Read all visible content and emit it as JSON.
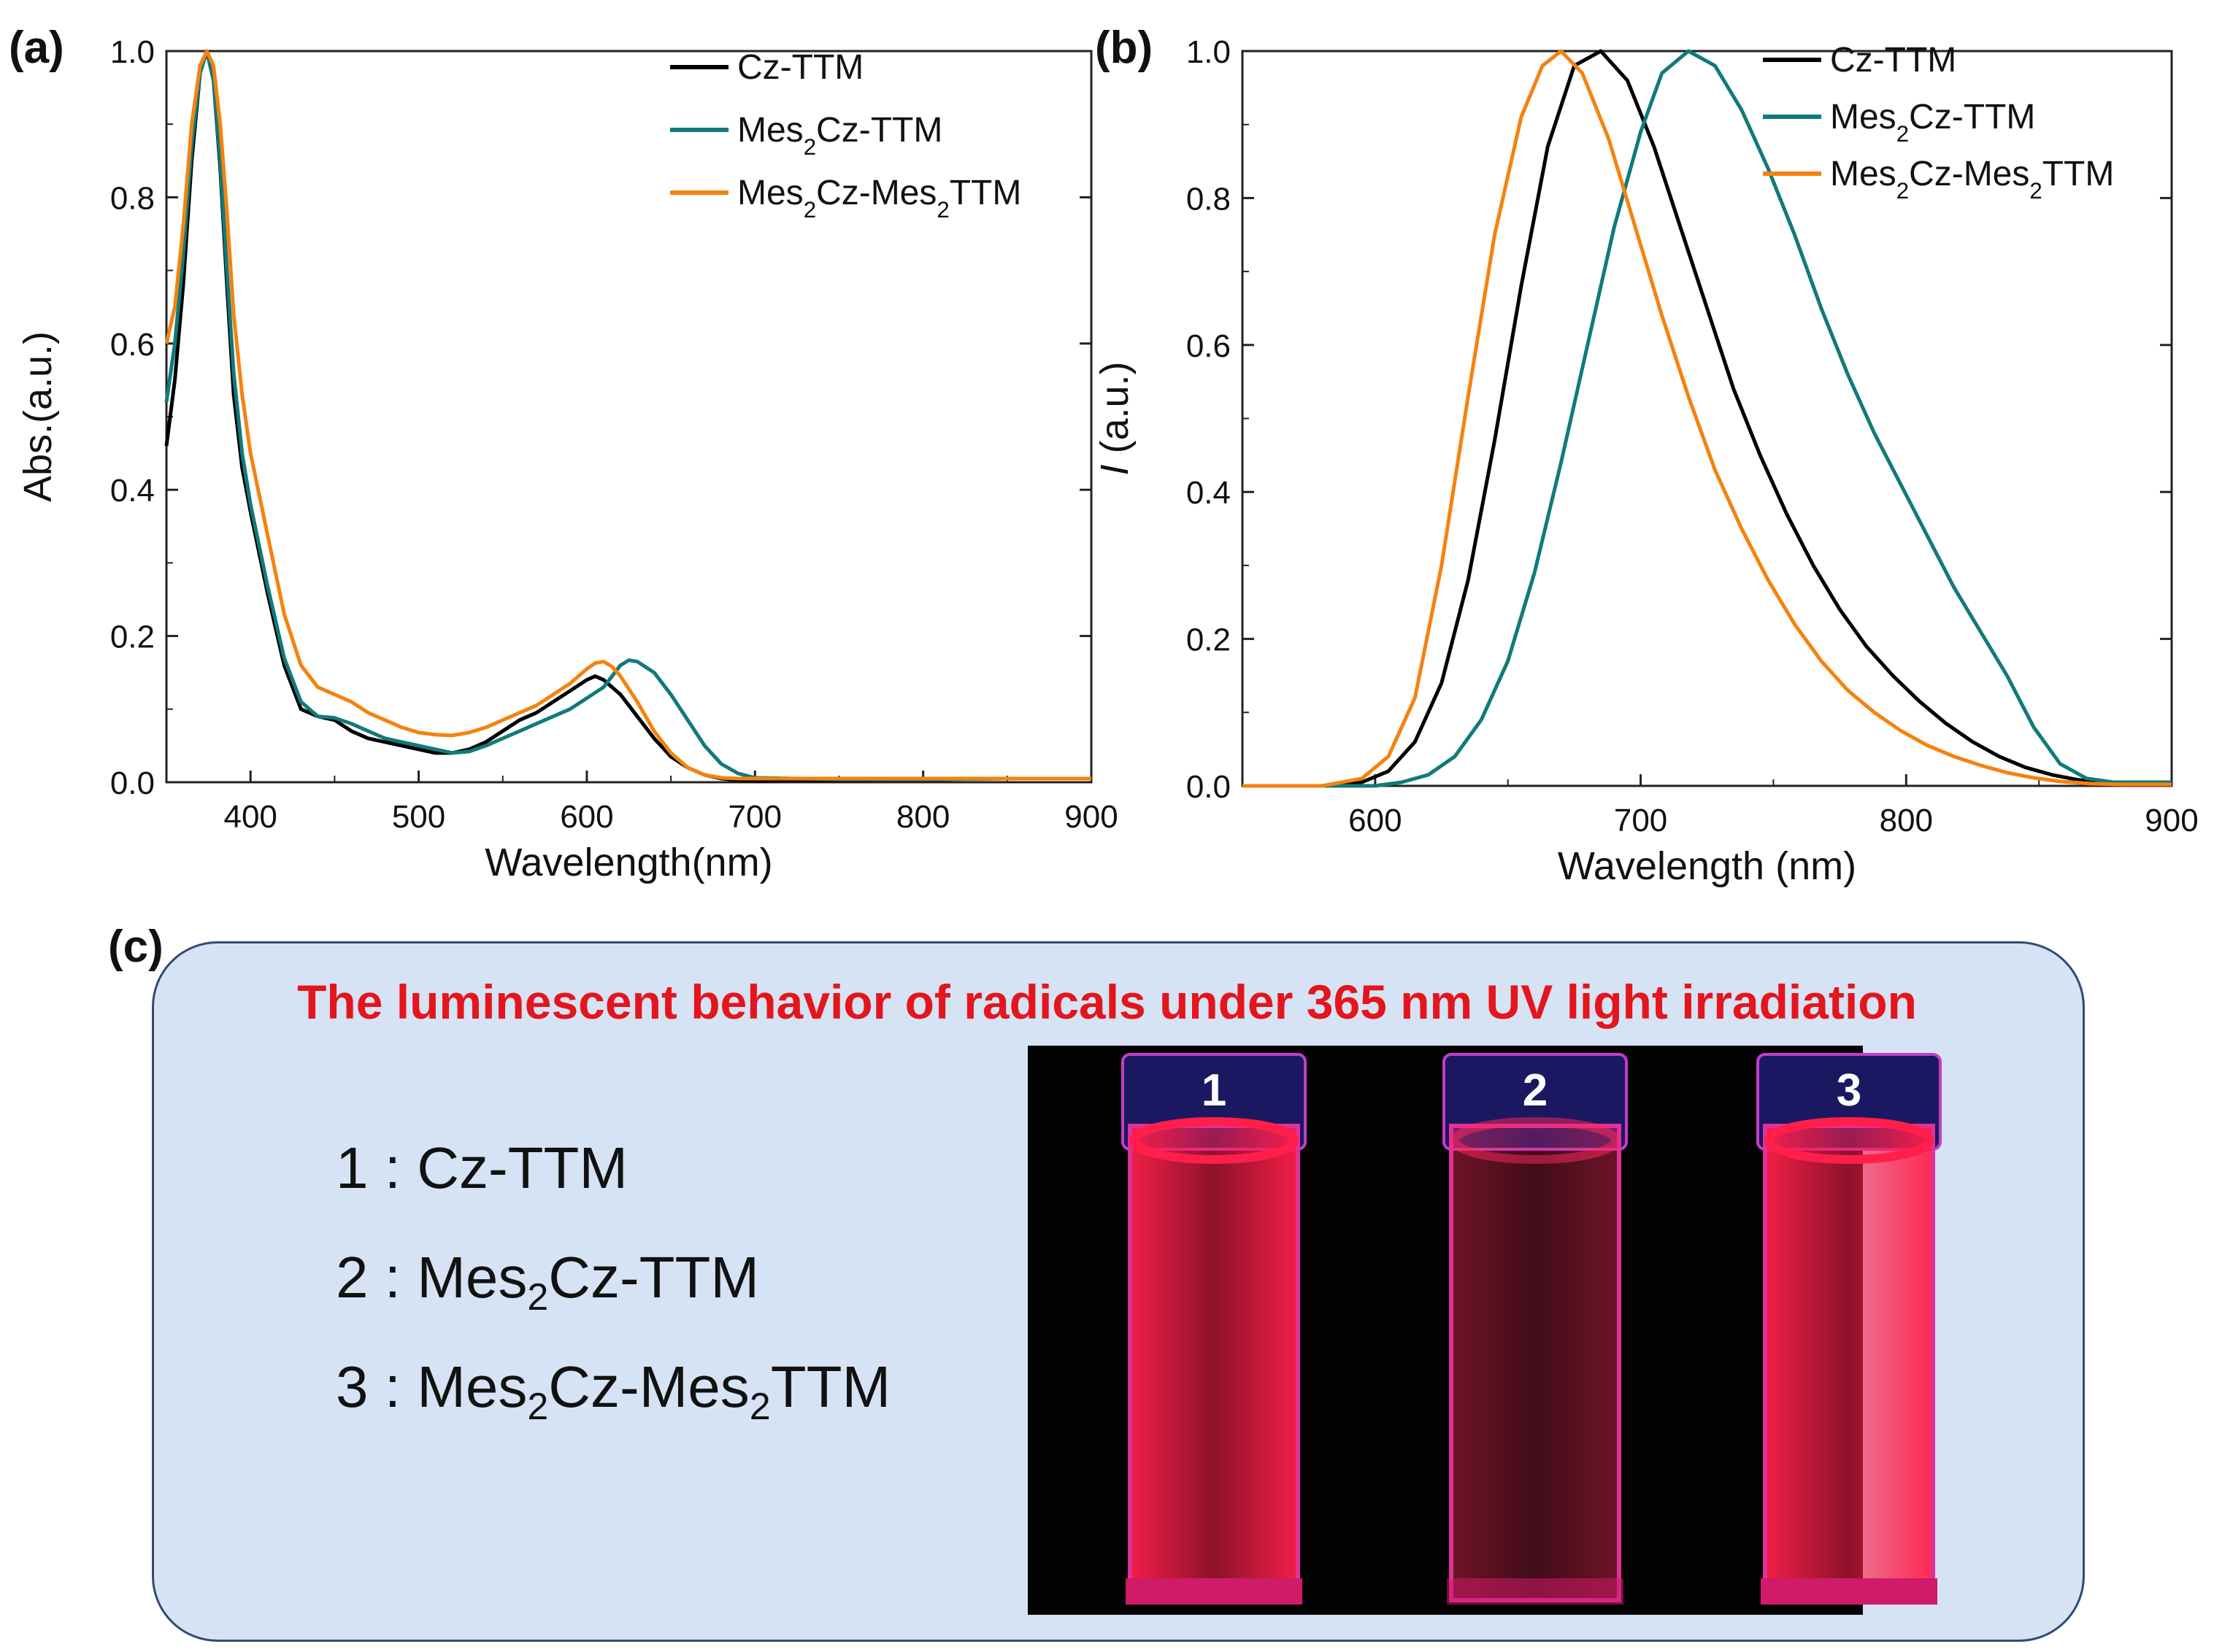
{
  "panel_labels": {
    "a": "(a)",
    "b": "(b)",
    "c": "(c)"
  },
  "chart_data": [
    {
      "type": "line",
      "title": "",
      "xlabel": "Wavelength(nm)",
      "ylabel": "Abs.(a.u.)",
      "xlim": [
        350,
        900
      ],
      "ylim": [
        0,
        1.0
      ],
      "xticks": [
        400,
        500,
        600,
        700,
        800,
        900
      ],
      "yticks": [
        0.0,
        0.2,
        0.4,
        0.6,
        0.8,
        1.0
      ],
      "xtick_labels": [
        "400",
        "500",
        "600",
        "700",
        "800",
        "900"
      ],
      "ytick_labels": [
        "0.0",
        "0.2",
        "0.4",
        "0.6",
        "0.8",
        "1.0"
      ],
      "legend_position": "top-right",
      "series": [
        {
          "name": "Cz-TTM",
          "label_main": "Cz-TTM",
          "color": "#000000",
          "x": [
            350,
            355,
            360,
            365,
            370,
            374,
            378,
            382,
            386,
            390,
            395,
            400,
            410,
            420,
            430,
            440,
            450,
            460,
            470,
            480,
            490,
            500,
            510,
            520,
            530,
            540,
            550,
            560,
            570,
            580,
            590,
            600,
            605,
            610,
            620,
            630,
            640,
            650,
            660,
            670,
            680,
            690,
            700,
            750,
            800,
            850,
            900
          ],
          "y": [
            0.46,
            0.55,
            0.68,
            0.85,
            0.97,
            1.0,
            0.96,
            0.84,
            0.68,
            0.53,
            0.43,
            0.37,
            0.26,
            0.16,
            0.1,
            0.09,
            0.085,
            0.07,
            0.06,
            0.055,
            0.05,
            0.045,
            0.04,
            0.04,
            0.045,
            0.055,
            0.07,
            0.085,
            0.095,
            0.11,
            0.125,
            0.14,
            0.145,
            0.14,
            0.12,
            0.09,
            0.06,
            0.035,
            0.02,
            0.01,
            0.005,
            0.003,
            0.002,
            0.003,
            0.004,
            0.005,
            0.005
          ]
        },
        {
          "name": "Mes2Cz-TTM",
          "label_main": "Mes",
          "label_sub": "2",
          "label_tail": "Cz-TTM",
          "color": "#117a7a",
          "x": [
            350,
            355,
            360,
            365,
            370,
            374,
            378,
            382,
            386,
            390,
            395,
            400,
            410,
            420,
            430,
            440,
            450,
            460,
            470,
            480,
            490,
            500,
            510,
            520,
            530,
            540,
            550,
            560,
            570,
            580,
            590,
            600,
            610,
            615,
            620,
            625,
            630,
            640,
            650,
            660,
            670,
            680,
            690,
            700,
            750,
            800,
            850,
            900
          ],
          "y": [
            0.52,
            0.6,
            0.72,
            0.87,
            0.97,
            1.0,
            0.96,
            0.85,
            0.7,
            0.56,
            0.45,
            0.38,
            0.27,
            0.17,
            0.11,
            0.09,
            0.088,
            0.08,
            0.07,
            0.06,
            0.055,
            0.05,
            0.045,
            0.04,
            0.042,
            0.05,
            0.06,
            0.07,
            0.08,
            0.09,
            0.1,
            0.115,
            0.13,
            0.145,
            0.16,
            0.167,
            0.165,
            0.15,
            0.12,
            0.085,
            0.05,
            0.025,
            0.012,
            0.006,
            0.004,
            0.004,
            0.005,
            0.005
          ]
        },
        {
          "name": "Mes2Cz-Mes2TTM",
          "label_main": "Mes",
          "label_sub": "2",
          "label_mid": "Cz-Mes",
          "label_sub2": "2",
          "label_tail": "TTM",
          "color": "#f5820f",
          "x": [
            350,
            355,
            360,
            365,
            370,
            374,
            378,
            382,
            386,
            390,
            395,
            400,
            410,
            420,
            430,
            440,
            450,
            460,
            470,
            480,
            490,
            500,
            510,
            520,
            530,
            540,
            550,
            560,
            570,
            580,
            590,
            600,
            605,
            610,
            615,
            620,
            630,
            640,
            650,
            660,
            670,
            680,
            690,
            700,
            750,
            800,
            850,
            900
          ],
          "y": [
            0.6,
            0.65,
            0.76,
            0.9,
            0.98,
            1.0,
            0.98,
            0.9,
            0.78,
            0.64,
            0.53,
            0.45,
            0.34,
            0.23,
            0.16,
            0.13,
            0.12,
            0.11,
            0.095,
            0.085,
            0.075,
            0.068,
            0.065,
            0.064,
            0.068,
            0.075,
            0.085,
            0.095,
            0.105,
            0.12,
            0.135,
            0.155,
            0.163,
            0.165,
            0.158,
            0.145,
            0.11,
            0.07,
            0.04,
            0.02,
            0.01,
            0.006,
            0.005,
            0.005,
            0.005,
            0.005,
            0.005,
            0.005
          ]
        }
      ]
    },
    {
      "type": "line",
      "title": "",
      "xlabel": "Wavelength (nm)",
      "ylabel": "I (a.u.)",
      "ylabel_italic": "I",
      "ylabel_rest": " (a.u.)",
      "xlim": [
        550,
        900
      ],
      "ylim": [
        0,
        1.0
      ],
      "xticks": [
        600,
        700,
        800,
        900
      ],
      "yticks": [
        0.0,
        0.2,
        0.4,
        0.6,
        0.8,
        1.0
      ],
      "xtick_labels": [
        "600",
        "700",
        "800",
        "900"
      ],
      "ytick_labels": [
        "0.0",
        "0.2",
        "0.4",
        "0.6",
        "0.8",
        "1.0"
      ],
      "legend_position": "top-right",
      "series": [
        {
          "name": "Cz-TTM",
          "label_main": "Cz-TTM",
          "color": "#000000",
          "x": [
            550,
            580,
            595,
            605,
            615,
            625,
            635,
            645,
            655,
            665,
            675,
            685,
            695,
            705,
            715,
            725,
            735,
            745,
            755,
            765,
            775,
            785,
            795,
            805,
            815,
            825,
            835,
            845,
            855,
            865,
            875,
            885,
            900
          ],
          "y": [
            0.0,
            0.0,
            0.005,
            0.02,
            0.06,
            0.14,
            0.28,
            0.47,
            0.68,
            0.87,
            0.98,
            1.0,
            0.96,
            0.87,
            0.76,
            0.65,
            0.54,
            0.45,
            0.37,
            0.3,
            0.24,
            0.19,
            0.15,
            0.115,
            0.085,
            0.06,
            0.04,
            0.025,
            0.015,
            0.008,
            0.005,
            0.005,
            0.005
          ]
        },
        {
          "name": "Mes2Cz-TTM",
          "label_main": "Mes",
          "label_sub": "2",
          "label_tail": "Cz-TTM",
          "color": "#117a7a",
          "x": [
            550,
            600,
            610,
            620,
            630,
            640,
            650,
            660,
            670,
            680,
            690,
            700,
            708,
            718,
            728,
            738,
            748,
            758,
            768,
            778,
            788,
            798,
            808,
            818,
            828,
            838,
            848,
            858,
            868,
            878,
            890,
            900
          ],
          "y": [
            0.0,
            0.0,
            0.005,
            0.015,
            0.04,
            0.09,
            0.17,
            0.29,
            0.44,
            0.6,
            0.76,
            0.89,
            0.97,
            1.0,
            0.98,
            0.92,
            0.84,
            0.75,
            0.65,
            0.56,
            0.48,
            0.41,
            0.34,
            0.27,
            0.21,
            0.15,
            0.08,
            0.03,
            0.01,
            0.005,
            0.005,
            0.005
          ]
        },
        {
          "name": "Mes2Cz-Mes2TTM",
          "label_main": "Mes",
          "label_sub": "2",
          "label_mid": "Cz-Mes",
          "label_sub2": "2",
          "label_tail": "TTM",
          "color": "#f5820f",
          "x": [
            550,
            580,
            595,
            605,
            615,
            625,
            635,
            645,
            655,
            663,
            670,
            678,
            688,
            698,
            708,
            718,
            728,
            738,
            748,
            758,
            768,
            778,
            788,
            798,
            808,
            818,
            828,
            838,
            848,
            858,
            870,
            880,
            900
          ],
          "y": [
            0.0,
            0.0,
            0.01,
            0.04,
            0.12,
            0.3,
            0.53,
            0.75,
            0.91,
            0.98,
            1.0,
            0.97,
            0.88,
            0.76,
            0.64,
            0.53,
            0.43,
            0.35,
            0.28,
            0.22,
            0.17,
            0.13,
            0.1,
            0.075,
            0.055,
            0.04,
            0.028,
            0.018,
            0.011,
            0.006,
            0.003,
            0.002,
            0.002
          ]
        }
      ]
    }
  ],
  "panel_c": {
    "title": "The luminescent behavior of radicals under 365 nm UV light irradiation",
    "items": [
      {
        "num": "1",
        "sep": " : ",
        "main": "Cz-TTM"
      },
      {
        "num": "2",
        "sep": " : ",
        "main": "Mes",
        "sub": "2",
        "tail": "Cz-TTM"
      },
      {
        "num": "3",
        "sep": " : ",
        "main": "Mes",
        "sub": "2",
        "mid": "Cz-Mes",
        "sub2": "2",
        "tail": "TTM"
      }
    ],
    "cuvettes": [
      {
        "label": "1",
        "glow": "#ff1f4a",
        "intensity": 1.0
      },
      {
        "label": "2",
        "glow": "#ff2a5a",
        "intensity": 0.45
      },
      {
        "label": "3",
        "glow": "#ff1f4a",
        "intensity": 1.0
      }
    ]
  }
}
